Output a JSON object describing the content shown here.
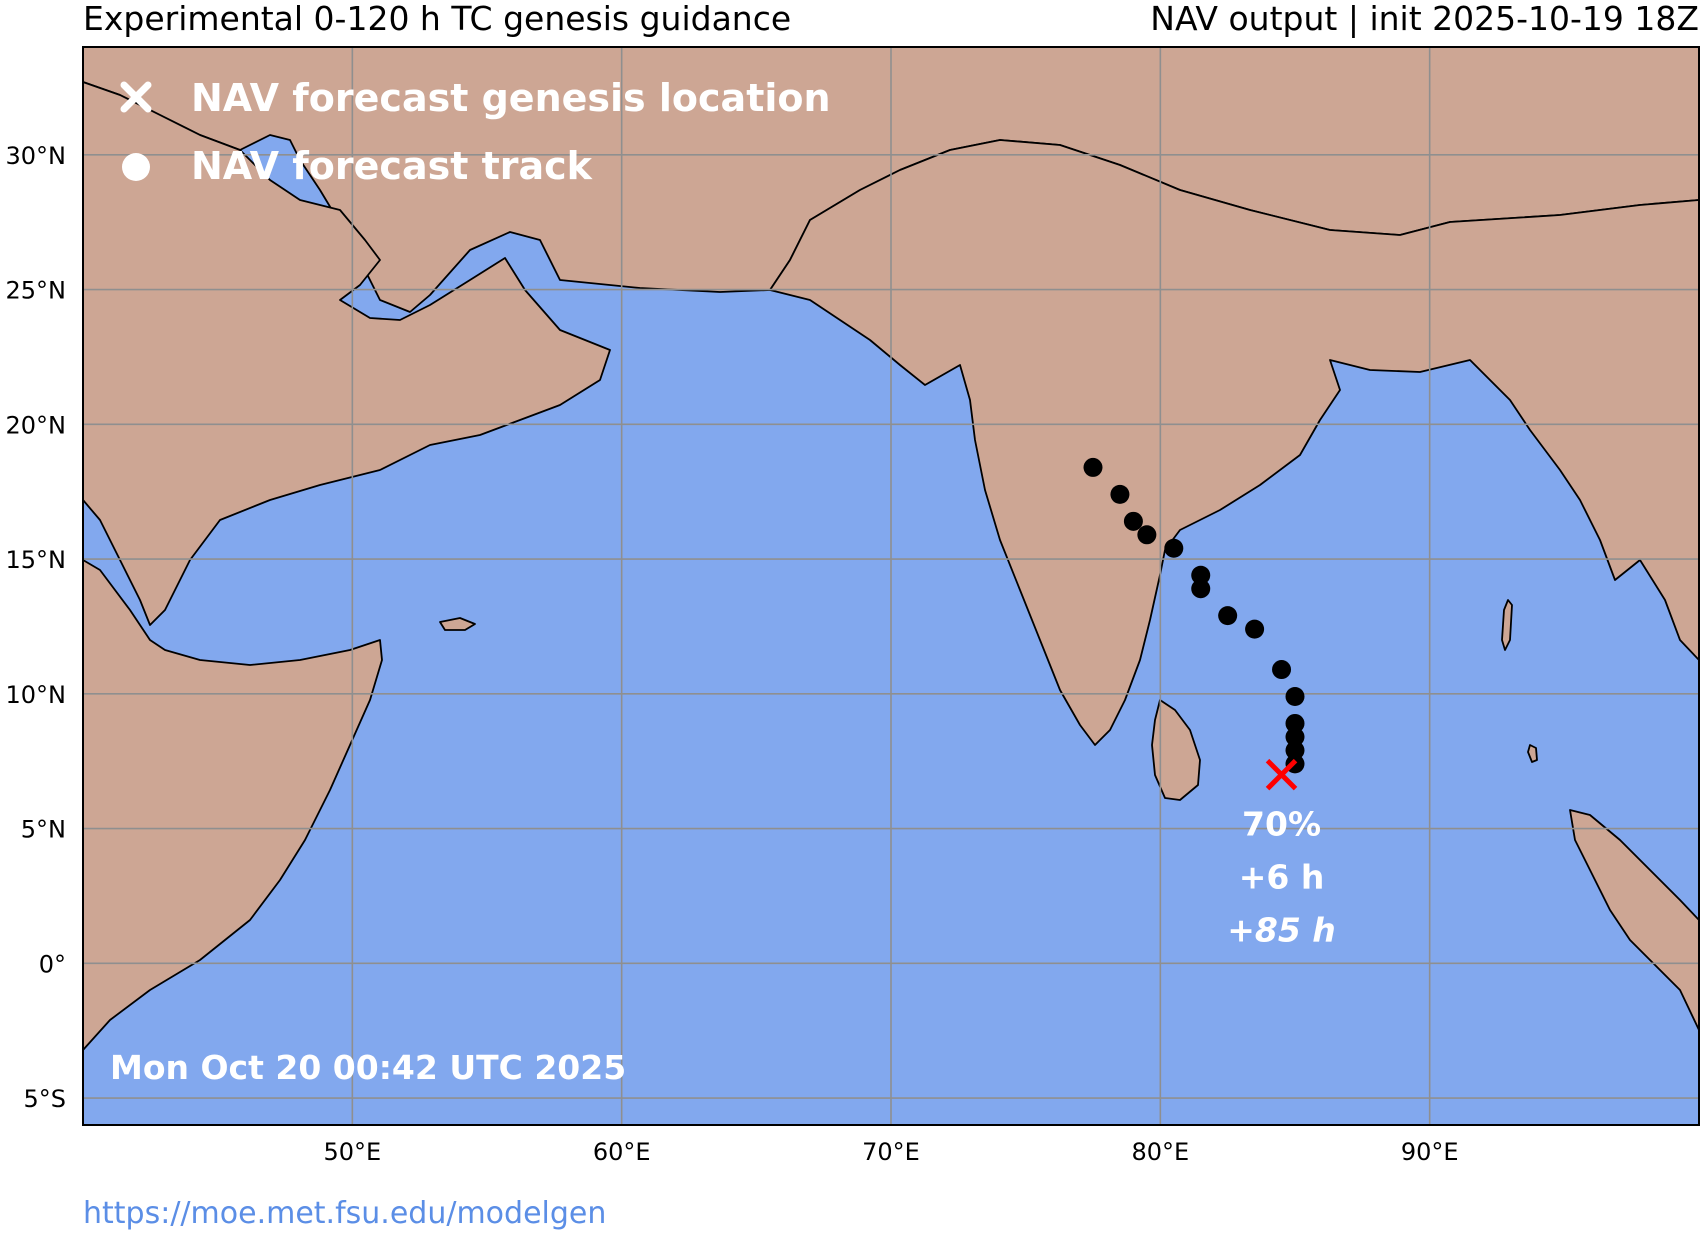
{
  "header": {
    "title_left": "Experimental 0-120 h TC genesis guidance",
    "title_right": "NAV output | init 2025-10-19 18Z"
  },
  "legend": {
    "genesis_label": "NAV forecast genesis location",
    "track_label": "NAV forecast track"
  },
  "timestamp": "Mon Oct 20 00:42 UTC 2025",
  "footer": {
    "url": "https://moe.met.fsu.edu/modelgen"
  },
  "genesis": {
    "lon": 84.5,
    "lat": 7.0,
    "probability": "70%",
    "lead_time": "+6 h",
    "duration": "+85 h",
    "marker_color": "#ff0000"
  },
  "track": [
    {
      "lon": 85.0,
      "lat": 7.4
    },
    {
      "lon": 85.0,
      "lat": 7.9
    },
    {
      "lon": 85.0,
      "lat": 8.4
    },
    {
      "lon": 85.0,
      "lat": 8.9
    },
    {
      "lon": 85.0,
      "lat": 9.9
    },
    {
      "lon": 84.5,
      "lat": 10.9
    },
    {
      "lon": 83.5,
      "lat": 12.4
    },
    {
      "lon": 82.5,
      "lat": 12.9
    },
    {
      "lon": 81.5,
      "lat": 13.9
    },
    {
      "lon": 81.5,
      "lat": 14.4
    },
    {
      "lon": 80.5,
      "lat": 15.4
    },
    {
      "lon": 79.5,
      "lat": 15.9
    },
    {
      "lon": 79.0,
      "lat": 16.4
    },
    {
      "lon": 78.5,
      "lat": 17.4
    },
    {
      "lon": 77.5,
      "lat": 18.4
    }
  ],
  "axes": {
    "lon_range": [
      40,
      100
    ],
    "lat_range": [
      -6,
      34
    ],
    "x_ticks": [
      {
        "value": 50,
        "label": "50°E"
      },
      {
        "value": 60,
        "label": "60°E"
      },
      {
        "value": 70,
        "label": "70°E"
      },
      {
        "value": 80,
        "label": "80°E"
      },
      {
        "value": 90,
        "label": "90°E"
      }
    ],
    "y_ticks": [
      {
        "value": 30,
        "label": "30°N"
      },
      {
        "value": 25,
        "label": "25°N"
      },
      {
        "value": 20,
        "label": "20°N"
      },
      {
        "value": 15,
        "label": "15°N"
      },
      {
        "value": 10,
        "label": "10°N"
      },
      {
        "value": 5,
        "label": "5°N"
      },
      {
        "value": 0,
        "label": "0°"
      },
      {
        "value": -5,
        "label": "5°S"
      }
    ],
    "grid": true
  },
  "colors": {
    "ocean": "#82a8ee",
    "land": "#cda694",
    "grid": "#8f8f8f",
    "track": "#000000"
  }
}
